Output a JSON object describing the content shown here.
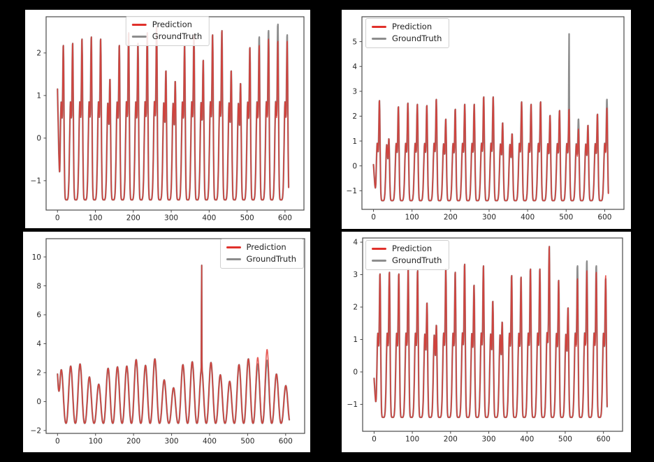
{
  "page": {
    "background": "#000000"
  },
  "legend": {
    "prediction_label": "Prediction",
    "groundtruth_label": "GroundTruth"
  },
  "colors": {
    "prediction": "#e0312b",
    "groundtruth": "#8d8d8d",
    "text": "#262626",
    "spine": "#4a4a4a",
    "legend_border": "#cfcfcf",
    "panel_background": "#ffffff",
    "figure_background": "#000000"
  },
  "chart_data": [
    {
      "id": "top-left",
      "type": "line",
      "legend_entries": [
        "Prediction",
        "GroundTruth"
      ],
      "legend_position": "top-center",
      "x_ticks": [
        0,
        100,
        200,
        300,
        400,
        500,
        600
      ],
      "y_ticks": [
        -1,
        0,
        1,
        2
      ],
      "xlim": [
        -30,
        650
      ],
      "ylim": [
        -1.69,
        2.85
      ],
      "wave": {
        "style": "spiky",
        "phase0": 1.7,
        "period": 24.6,
        "trough": -1.45,
        "shoulder": 0.95,
        "start": 1.15,
        "needle_base": 2.3
      },
      "series": [
        {
          "name": "GroundTruth",
          "peaks": [
            2.2,
            2.25,
            2.35,
            2.4,
            2.35,
            1.4,
            2.2,
            2.5,
            2.25,
            2.5,
            2.65,
            1.6,
            1.35,
            2.2,
            2.45,
            1.85,
            2.45,
            2.55,
            1.6,
            1.3,
            2.15,
            2.4,
            2.55,
            2.7,
            2.45
          ]
        },
        {
          "name": "Prediction",
          "peaks": [
            2.2,
            2.25,
            2.35,
            2.4,
            2.35,
            1.4,
            2.2,
            2.5,
            2.25,
            2.5,
            2.65,
            1.6,
            1.35,
            2.2,
            2.45,
            1.85,
            2.45,
            2.55,
            1.6,
            1.3,
            2.15,
            2.2,
            2.35,
            2.3,
            2.3
          ]
        }
      ]
    },
    {
      "id": "top-right",
      "type": "line",
      "legend_entries": [
        "Prediction",
        "GroundTruth"
      ],
      "legend_position": "top-left",
      "x_ticks": [
        0,
        100,
        200,
        300,
        400,
        500,
        600
      ],
      "y_ticks": [
        -1,
        0,
        1,
        2,
        3,
        4,
        5
      ],
      "xlim": [
        -30,
        650
      ],
      "ylim": [
        -1.75,
        6.0
      ],
      "wave": {
        "style": "spiky",
        "phase0": 1.7,
        "period": 24.6,
        "trough": -1.4,
        "shoulder": 1.0,
        "start": 0.05,
        "needle_base": 2.3
      },
      "series": [
        {
          "name": "GroundTruth",
          "peaks": [
            2.65,
            1.1,
            2.4,
            2.55,
            2.5,
            2.45,
            2.7,
            1.9,
            2.3,
            2.5,
            2.5,
            2.8,
            2.8,
            1.75,
            1.3,
            2.6,
            2.5,
            2.6,
            2.05,
            2.25,
            5.5,
            1.9,
            1.65,
            2.1,
            2.7
          ]
        },
        {
          "name": "Prediction",
          "peaks": [
            2.65,
            1.1,
            2.4,
            2.55,
            2.5,
            2.45,
            2.7,
            1.9,
            2.3,
            2.5,
            2.5,
            2.8,
            2.8,
            1.75,
            1.3,
            2.6,
            2.5,
            2.6,
            2.05,
            2.25,
            2.3,
            1.5,
            1.65,
            2.1,
            2.35
          ]
        }
      ]
    },
    {
      "id": "bottom-left",
      "type": "line",
      "legend_entries": [
        "Prediction",
        "GroundTruth"
      ],
      "legend_position": "top-right",
      "x_ticks": [
        0,
        100,
        200,
        300,
        400,
        500,
        600
      ],
      "y_ticks": [
        -2,
        0,
        2,
        4,
        6,
        8,
        10
      ],
      "xlim": [
        -30,
        650
      ],
      "ylim": [
        -2.2,
        11.26
      ],
      "wave": {
        "style": "smooth",
        "phase0": -2.3,
        "period": 24.6,
        "trough": -1.5,
        "shoulder": 0.6,
        "start": 1.9,
        "needle_base": 2.3
      },
      "series": [
        {
          "name": "GroundTruth",
          "peaks": [
            2.2,
            2.45,
            2.6,
            1.7,
            1.2,
            2.3,
            2.4,
            2.45,
            2.9,
            2.5,
            2.95,
            1.5,
            0.95,
            2.55,
            2.75,
            10.7,
            2.7,
            1.85,
            1.4,
            2.55,
            2.95,
            2.6,
            2.85,
            1.9,
            1.1
          ]
        },
        {
          "name": "Prediction",
          "peaks": [
            2.2,
            2.45,
            2.6,
            1.7,
            1.2,
            2.3,
            2.4,
            2.45,
            2.9,
            2.5,
            2.95,
            1.5,
            0.95,
            2.55,
            2.75,
            10.7,
            2.7,
            1.85,
            1.4,
            2.55,
            2.95,
            3.05,
            3.6,
            1.9,
            1.1
          ]
        }
      ]
    },
    {
      "id": "bottom-right",
      "type": "line",
      "legend_entries": [
        "Prediction",
        "GroundTruth"
      ],
      "legend_position": "top-left",
      "x_ticks": [
        0,
        100,
        200,
        300,
        400,
        500,
        600
      ],
      "y_ticks": [
        -1,
        0,
        1,
        2,
        3,
        4
      ],
      "xlim": [
        -30,
        650
      ],
      "ylim": [
        -1.83,
        4.13
      ],
      "wave": {
        "style": "spiky",
        "phase0": 1.7,
        "period": 24.6,
        "trough": -1.4,
        "shoulder": 1.3,
        "start": -0.2,
        "needle_base": 2.3
      },
      "series": [
        {
          "name": "GroundTruth",
          "peaks": [
            3.05,
            3.1,
            3.05,
            3.2,
            3.15,
            2.15,
            1.45,
            3.2,
            3.1,
            3.35,
            2.7,
            3.3,
            2.2,
            1.55,
            3.0,
            2.95,
            3.2,
            3.2,
            3.9,
            2.85,
            2.0,
            3.3,
            3.45,
            3.3,
            2.9
          ]
        },
        {
          "name": "Prediction",
          "peaks": [
            3.05,
            3.1,
            3.05,
            3.2,
            3.15,
            2.15,
            1.45,
            3.2,
            3.1,
            3.35,
            2.7,
            3.3,
            2.2,
            1.55,
            3.0,
            2.95,
            3.2,
            3.2,
            3.9,
            2.85,
            2.0,
            2.9,
            3.15,
            3.1,
            3.0
          ]
        }
      ]
    }
  ]
}
